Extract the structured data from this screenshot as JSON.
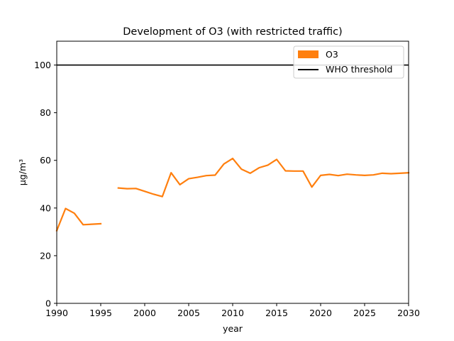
{
  "chart_data": {
    "type": "line",
    "title": "Development of O3 (with restricted traffic)",
    "xlabel": "year",
    "ylabel": "µg/m³",
    "xlim": [
      1990,
      2030
    ],
    "ylim": [
      0,
      110
    ],
    "xticks": [
      1990,
      1995,
      2000,
      2005,
      2010,
      2015,
      2020,
      2025,
      2030
    ],
    "yticks": [
      0,
      20,
      40,
      60,
      80,
      100
    ],
    "grid": false,
    "legend_position": "top-right",
    "series": [
      {
        "name": "O3",
        "color": "#ff7f0e",
        "segments": [
          [
            {
              "x": 1990,
              "y": 30.5
            },
            {
              "x": 1991,
              "y": 39.8
            },
            {
              "x": 1992,
              "y": 37.8
            },
            {
              "x": 1993,
              "y": 33.0
            },
            {
              "x": 1994,
              "y": 33.2
            },
            {
              "x": 1995,
              "y": 33.4
            }
          ],
          [
            {
              "x": 1997,
              "y": 48.4
            },
            {
              "x": 1998,
              "y": 48.1
            },
            {
              "x": 1999,
              "y": 48.2
            },
            {
              "x": 2000,
              "y": 47.0
            },
            {
              "x": 2001,
              "y": 45.8
            },
            {
              "x": 2002,
              "y": 44.8
            },
            {
              "x": 2003,
              "y": 54.8
            },
            {
              "x": 2004,
              "y": 49.8
            },
            {
              "x": 2005,
              "y": 52.3
            },
            {
              "x": 2006,
              "y": 52.9
            },
            {
              "x": 2007,
              "y": 53.6
            },
            {
              "x": 2008,
              "y": 53.8
            },
            {
              "x": 2009,
              "y": 58.5
            },
            {
              "x": 2010,
              "y": 60.8
            },
            {
              "x": 2011,
              "y": 56.3
            },
            {
              "x": 2012,
              "y": 54.6
            },
            {
              "x": 2013,
              "y": 56.9
            },
            {
              "x": 2014,
              "y": 58.0
            },
            {
              "x": 2015,
              "y": 60.4
            },
            {
              "x": 2016,
              "y": 55.6
            },
            {
              "x": 2017,
              "y": 55.5
            },
            {
              "x": 2018,
              "y": 55.5
            },
            {
              "x": 2019,
              "y": 48.8
            },
            {
              "x": 2020,
              "y": 53.7
            },
            {
              "x": 2021,
              "y": 54.1
            },
            {
              "x": 2022,
              "y": 53.6
            },
            {
              "x": 2023,
              "y": 54.2
            },
            {
              "x": 2024,
              "y": 53.9
            },
            {
              "x": 2025,
              "y": 53.7
            },
            {
              "x": 2026,
              "y": 53.9
            },
            {
              "x": 2027,
              "y": 54.6
            },
            {
              "x": 2028,
              "y": 54.4
            },
            {
              "x": 2029,
              "y": 54.6
            },
            {
              "x": 2030,
              "y": 54.8
            }
          ]
        ]
      }
    ],
    "reference_lines": [
      {
        "name": "WHO threshold",
        "y": 100,
        "color": "#000000"
      }
    ]
  }
}
